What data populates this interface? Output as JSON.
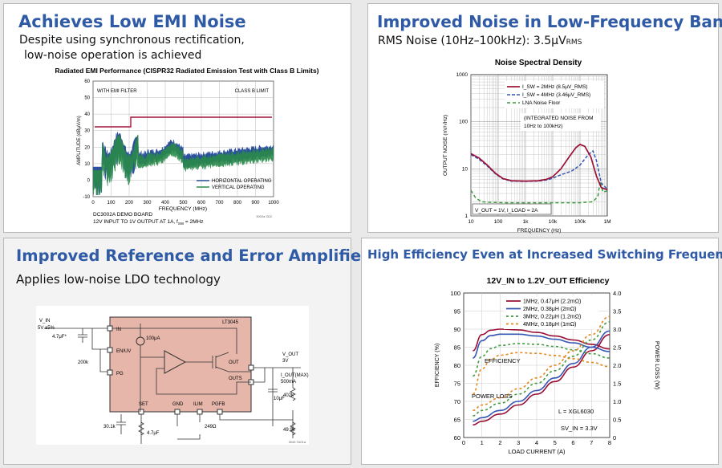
{
  "panels": {
    "emi": {
      "title": "Achieves Low EMI Noise",
      "subtitle_line1": "Despite using synchronous rectification,",
      "subtitle_line2": "low-noise operation is achieved"
    },
    "noise": {
      "title": "Improved Noise in Low-Frequency Band",
      "subtitle_prefix": "RMS Noise (10Hz–100kHz): 3.5μV",
      "subtitle_sub": "RMS"
    },
    "ref": {
      "title": "Improved Reference and Error Amplifier",
      "subtitle": "Applies low-noise LDO technology"
    },
    "eff": {
      "title": "High Efficiency Even at Increased Switching Frequency"
    }
  },
  "emi_chart": {
    "title": "Radiated EMI Performance (CISPR32 Radiated Emission Test with Class B Limits)",
    "filter_label": "WITH EMI FILTER",
    "limit_label": "CLASS B LIMIT",
    "ylabel": "AMPLITUDE (dBμV/m)",
    "xlabel": "FREQUENCY (MHz)",
    "x_ticks": [
      "0",
      "100",
      "200",
      "300",
      "400",
      "500",
      "600",
      "700",
      "800",
      "900",
      "1000"
    ],
    "y_ticks": [
      "60",
      "50",
      "40",
      "30",
      "20",
      "10",
      "0",
      "-10"
    ],
    "legend": [
      "HORIZONTAL OPERATING",
      "VERTICAL OPERATING"
    ],
    "note1": "DC3002A DEMO BOARD",
    "note2": "12V INPUT TO 1V OUTPUT AT 1A, f",
    "note2_sub": "SW",
    "note2_end": " = 2MHz",
    "code": "3002a G02"
  },
  "noise_chart": {
    "title": "Noise Spectral Density",
    "ylabel": "OUTPUT NOISE (nV/√Hz)",
    "xlabel": "FREQUENCY (Hz)",
    "x_ticks": [
      "10",
      "100",
      "1k",
      "10k",
      "100k",
      "1M"
    ],
    "y_ticks": [
      "1000",
      "100",
      "10",
      "1"
    ],
    "legend": [
      "I_SW = 2MHz (8.5μV_RMS)",
      "I_SW = 4MHz (3.46μV_RMS)",
      "LNA Noise Floor"
    ],
    "note1": "(INTEGRATED NOISE FROM",
    "note2": "10Hz to 100kHz)",
    "cond": "V_OUT = 1V, I_LOAD = 2A",
    "colors": {
      "s2mhz": "#9a1034",
      "s4mhz": "#3557b5",
      "floor": "#3d9a3d"
    }
  },
  "circuit": {
    "ic_name": "LT3045",
    "vin": "V_IN",
    "vin_range": "5V ±5%",
    "cin": "4.7μF*",
    "pins_left": [
      "IN",
      "EN/UV",
      "PG"
    ],
    "pins_right": [
      "OUT",
      "OUTS"
    ],
    "pins_bottom": [
      "SET",
      "GND",
      "ILIM",
      "PGFB"
    ],
    "current": "100μA",
    "r_pg": "200k",
    "c_set": "4.7μF",
    "r_set": "30.1k",
    "r_ilim": "249Ω",
    "c_out": "10μF",
    "r_fb1": "402k",
    "r_fb2": "49.9k",
    "vout": "V_OUT",
    "vout_val": "3V",
    "iout": "I_OUT(MAX)",
    "iout_val": "500mA",
    "code": "3045 TA01a",
    "fill": "#e6b6ab"
  },
  "chart_data": {
    "type": "line",
    "title": "12V_IN to 1.2V_OUT Efficiency",
    "xlabel": "LOAD CURRENT (A)",
    "ylabel": "EFFICIENCY (%)",
    "y2label": "POWER LOSS (W)",
    "xlim": [
      0,
      8
    ],
    "ylim": [
      60,
      100
    ],
    "y2lim": [
      0,
      4.0
    ],
    "x_ticks": [
      "0",
      "1",
      "2",
      "3",
      "4",
      "5",
      "6",
      "7",
      "8"
    ],
    "y_ticks": [
      "60",
      "65",
      "70",
      "75",
      "80",
      "85",
      "90",
      "95",
      "100"
    ],
    "y2_ticks": [
      "0",
      "0.5",
      "1.0",
      "1.5",
      "2.0",
      "2.5",
      "3.0",
      "3.5",
      "4.0"
    ],
    "annotations": [
      "EFFICIENCY",
      "POWER LOSS",
      "L = XGL6030",
      "SV_IN = 3.3V"
    ],
    "series": [
      {
        "name": "1MHz, 0.47μH (2.2mΩ)",
        "color": "#9a1034",
        "dash": "",
        "eff": [
          [
            0.5,
            84
          ],
          [
            1,
            88.5
          ],
          [
            1.5,
            89.7
          ],
          [
            2,
            90
          ],
          [
            3,
            89.8
          ],
          [
            4,
            89.1
          ],
          [
            5,
            88.1
          ],
          [
            6,
            87
          ],
          [
            7,
            85.8
          ],
          [
            8,
            84.5
          ]
        ],
        "loss": [
          [
            0.5,
            0.35
          ],
          [
            1,
            0.45
          ],
          [
            2,
            0.65
          ],
          [
            3,
            0.9
          ],
          [
            4,
            1.2
          ],
          [
            5,
            1.55
          ],
          [
            6,
            1.95
          ],
          [
            7,
            2.4
          ],
          [
            8,
            2.85
          ]
        ]
      },
      {
        "name": "2MHz, 0.38μH (2mΩ)",
        "color": "#3557b5",
        "dash": "",
        "eff": [
          [
            0.5,
            82
          ],
          [
            1,
            86.8
          ],
          [
            1.5,
            88.2
          ],
          [
            2,
            88.6
          ],
          [
            3,
            88.6
          ],
          [
            4,
            88.1
          ],
          [
            5,
            87.2
          ],
          [
            6,
            86.2
          ],
          [
            7,
            85
          ],
          [
            8,
            83.8
          ]
        ],
        "loss": [
          [
            0.5,
            0.45
          ],
          [
            1,
            0.55
          ],
          [
            2,
            0.75
          ],
          [
            3,
            1.0
          ],
          [
            4,
            1.3
          ],
          [
            5,
            1.65
          ],
          [
            6,
            2.05
          ],
          [
            7,
            2.5
          ],
          [
            8,
            2.95
          ]
        ]
      },
      {
        "name": "3MHz, 0.22μH (1.2mΩ)",
        "color": "#3d9a3d",
        "dash": "3,3",
        "eff": [
          [
            0.5,
            77
          ],
          [
            1,
            82.5
          ],
          [
            1.5,
            84.6
          ],
          [
            2,
            85.5
          ],
          [
            3,
            86
          ],
          [
            4,
            85.8
          ],
          [
            5,
            85.2
          ],
          [
            6,
            84.3
          ],
          [
            7,
            83.2
          ],
          [
            8,
            82
          ]
        ],
        "loss": [
          [
            0.5,
            0.6
          ],
          [
            1,
            0.75
          ],
          [
            2,
            0.95
          ],
          [
            3,
            1.2
          ],
          [
            4,
            1.5
          ],
          [
            5,
            1.85
          ],
          [
            6,
            2.25
          ],
          [
            7,
            2.7
          ],
          [
            8,
            3.2
          ]
        ]
      },
      {
        "name": "4MHz, 0.18μH (1mΩ)",
        "color": "#e3861c",
        "dash": "3,3",
        "eff": [
          [
            0.5,
            72
          ],
          [
            1,
            79
          ],
          [
            1.5,
            81.7
          ],
          [
            2,
            82.8
          ],
          [
            3,
            83.5
          ],
          [
            4,
            83.3
          ],
          [
            5,
            82.7
          ],
          [
            6,
            81.8
          ],
          [
            7,
            80.8
          ],
          [
            8,
            79.6
          ]
        ],
        "loss": [
          [
            0.5,
            0.75
          ],
          [
            1,
            0.9
          ],
          [
            2,
            1.1
          ],
          [
            3,
            1.35
          ],
          [
            4,
            1.65
          ],
          [
            5,
            2.0
          ],
          [
            6,
            2.4
          ],
          [
            7,
            2.85
          ],
          [
            8,
            3.35
          ]
        ]
      }
    ]
  }
}
